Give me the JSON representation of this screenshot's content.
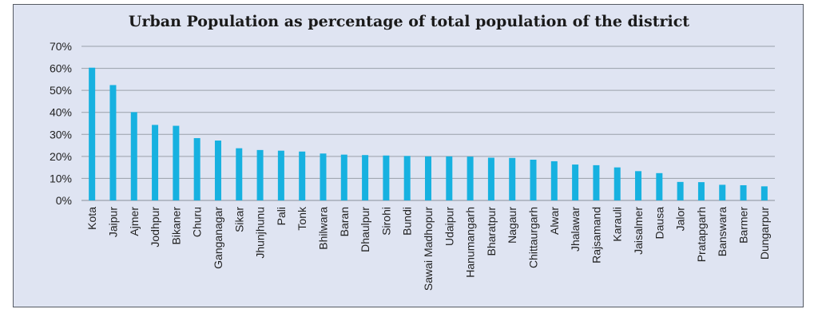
{
  "chart_data": {
    "type": "bar",
    "title": "Urban Population as percentage of total population of the district",
    "xlabel": "",
    "ylabel": "",
    "ylim": [
      0,
      70
    ],
    "yticks": [
      "0%",
      "10%",
      "20%",
      "30%",
      "40%",
      "50%",
      "60%",
      "70%"
    ],
    "grid": true,
    "bar_color": "#17b1e0",
    "categories": [
      "Kota",
      "Jaipur",
      "Ajmer",
      "Jodhpur",
      "Bikaner",
      "Churu",
      "Ganganagar",
      "Sikar",
      "Jhunjhunu",
      "Pali",
      "Tonk",
      "Bhilwara",
      "Baran",
      "Dhaulpur",
      "Sirohi",
      "Bundi",
      "Sawai Madhopur",
      "Udaipur",
      "Hanumangarh",
      "Bharatpur",
      "Nagaur",
      "Chittaurgarh",
      "Alwar",
      "Jhalawar",
      "Rajsamand",
      "Karauli",
      "Jaisalmer",
      "Dausa",
      "Jalor",
      "Pratapgarh",
      "Banswara",
      "Barmer",
      "Dungarpur"
    ],
    "values": [
      60.3,
      52.4,
      40.1,
      34.3,
      33.9,
      28.3,
      27.2,
      23.7,
      22.9,
      22.6,
      22.2,
      21.3,
      20.8,
      20.6,
      20.4,
      20.2,
      20.0,
      20.0,
      19.9,
      19.4,
      19.3,
      18.5,
      17.8,
      16.3,
      16.0,
      15.0,
      13.3,
      12.4,
      8.4,
      8.3,
      7.1,
      6.9,
      6.4
    ]
  }
}
